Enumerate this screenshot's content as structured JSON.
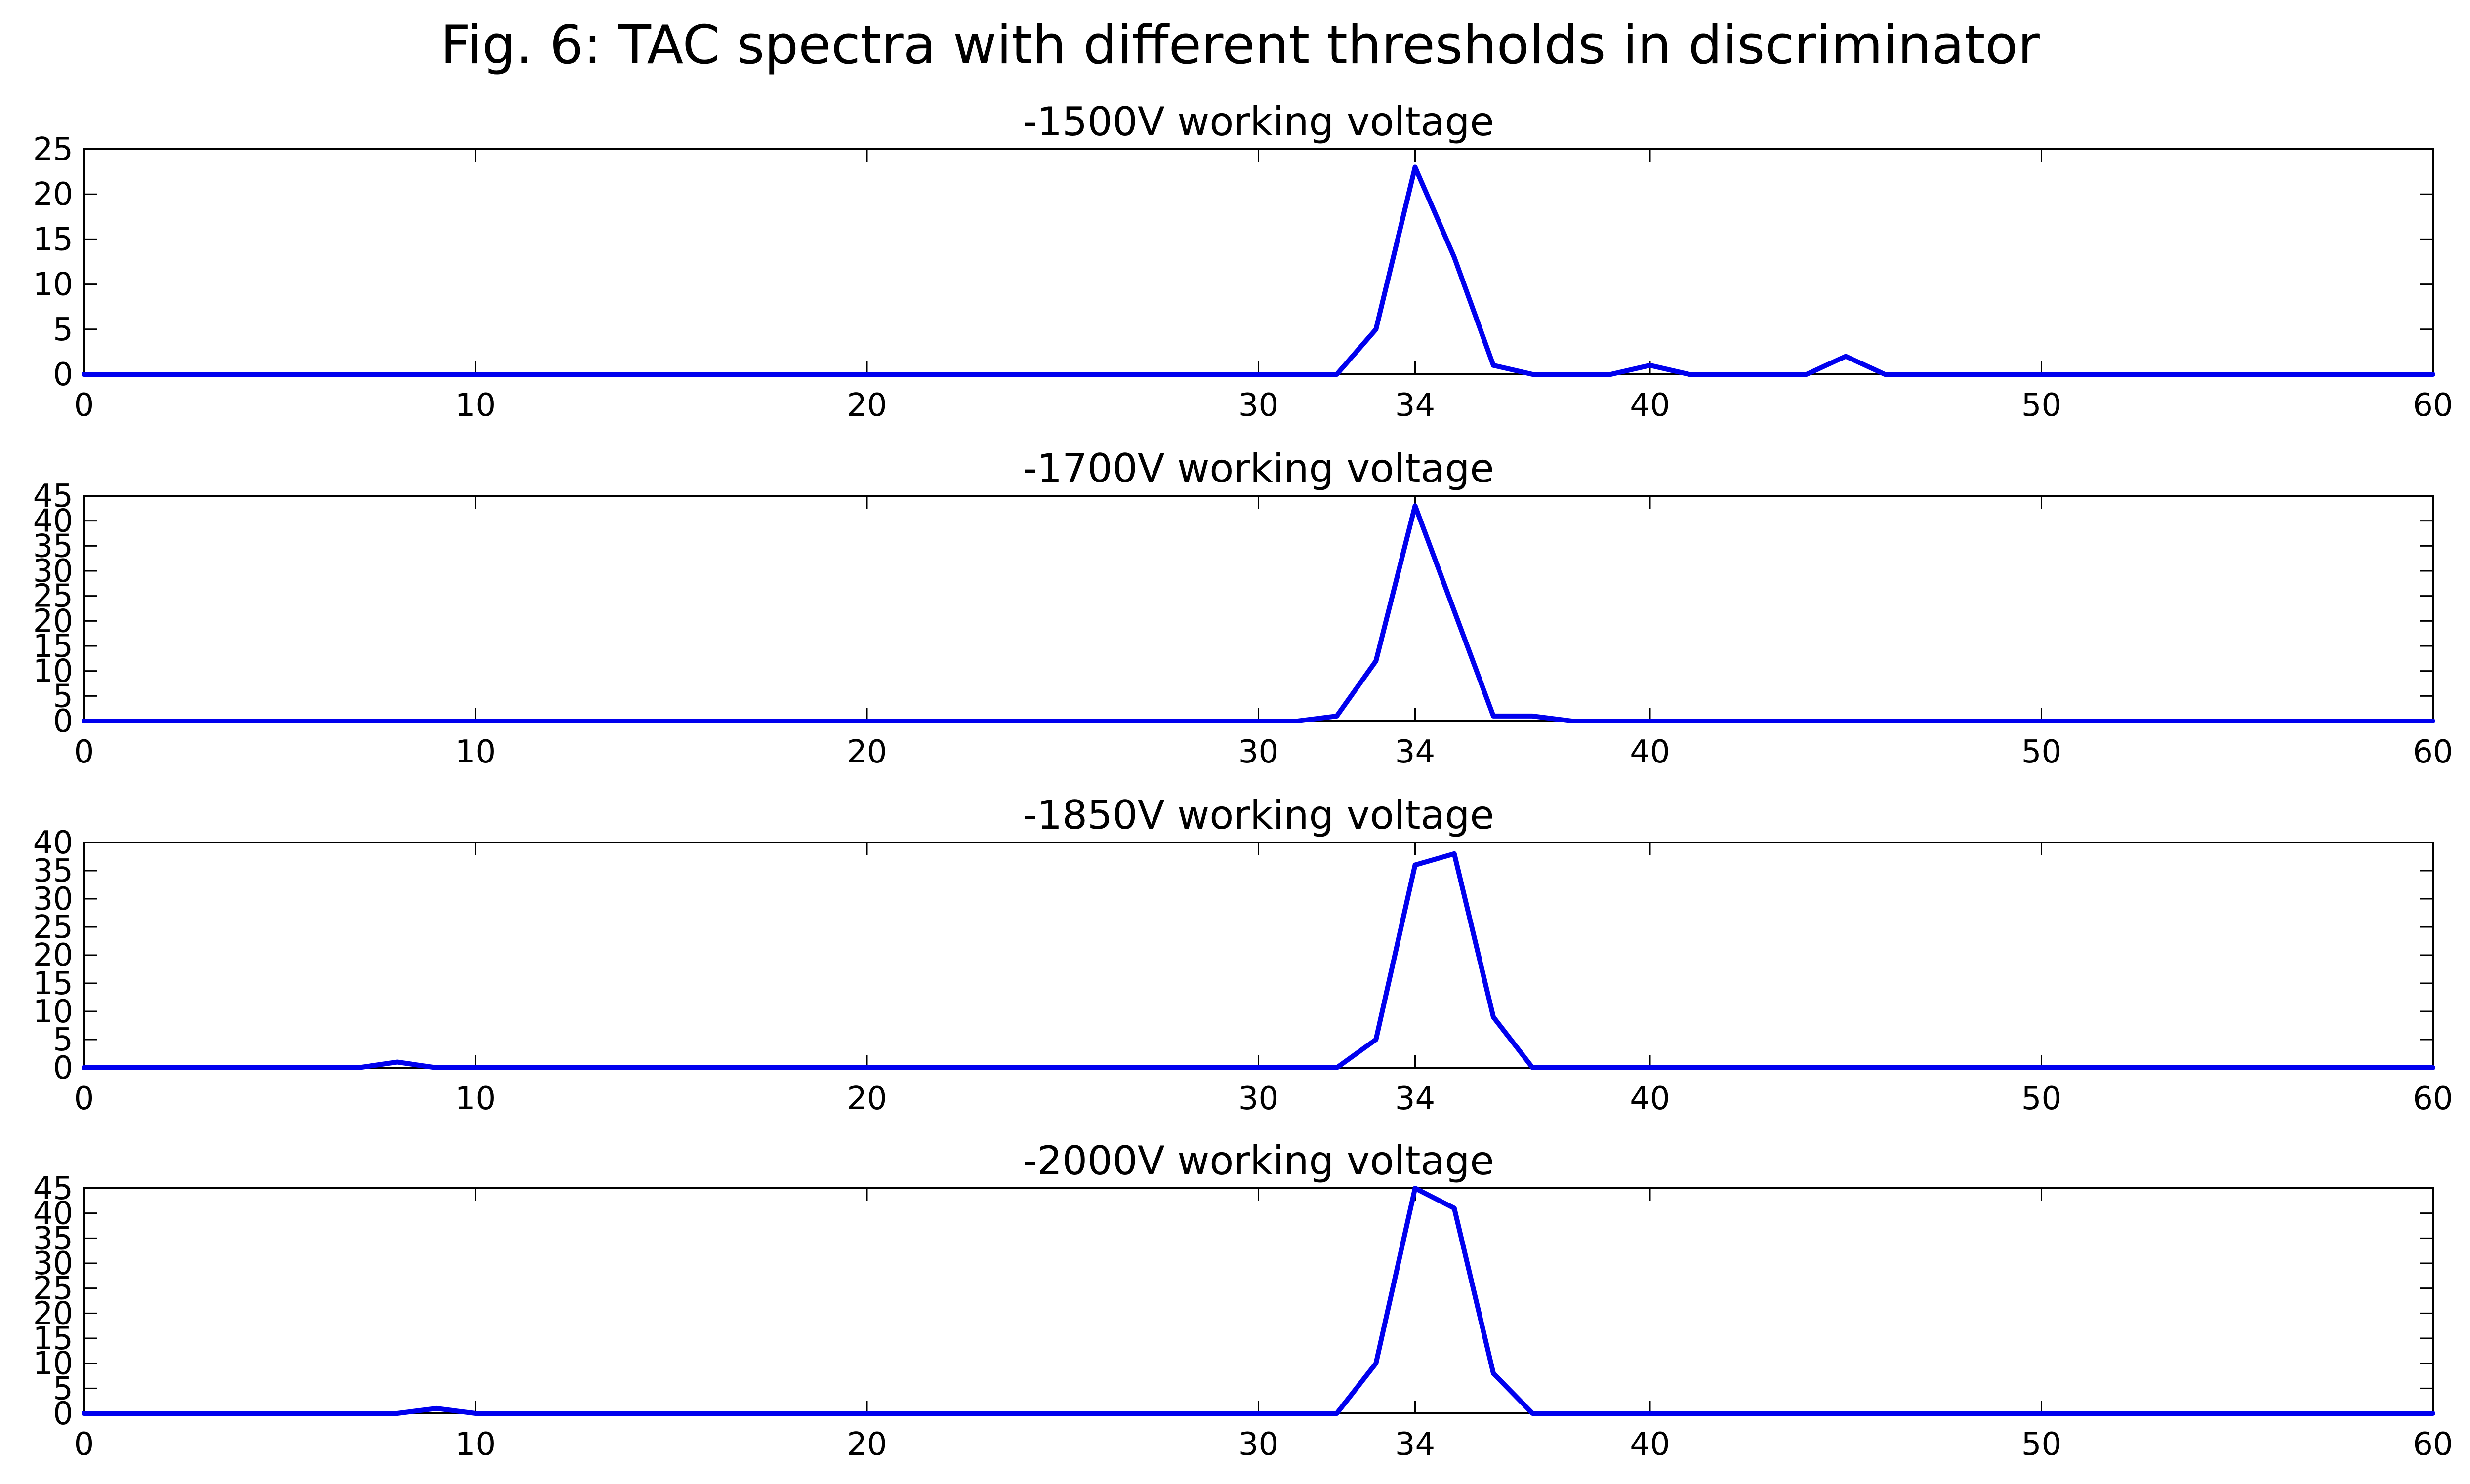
{
  "title": "Fig. 6: TAC spectra with different thresholds in discriminator",
  "colors": {
    "line": "#0000ee",
    "axes": "#000000",
    "background": "#ffffff"
  },
  "chart_data": [
    {
      "type": "line",
      "title": "-1500V working voltage",
      "xlim": [
        0,
        60
      ],
      "ylim": [
        0,
        25
      ],
      "xticks": [
        0,
        10,
        20,
        30,
        34,
        40,
        50,
        60
      ],
      "yticks": [
        0,
        5,
        10,
        15,
        20,
        25
      ],
      "grid": false,
      "x": [
        0,
        32,
        33,
        34,
        35,
        36,
        37,
        38,
        39,
        40,
        41,
        42,
        43,
        44,
        45,
        46,
        60
      ],
      "y": [
        0,
        0,
        5,
        23,
        13,
        1,
        0,
        0,
        0,
        1,
        0,
        0,
        0,
        0,
        2,
        0,
        0
      ]
    },
    {
      "type": "line",
      "title": "-1700V working voltage",
      "xlim": [
        0,
        60
      ],
      "ylim": [
        0,
        45
      ],
      "xticks": [
        0,
        10,
        20,
        30,
        34,
        40,
        50,
        60
      ],
      "yticks": [
        0,
        5,
        10,
        15,
        20,
        25,
        30,
        35,
        40,
        45
      ],
      "grid": false,
      "x": [
        0,
        31,
        32,
        33,
        34,
        35,
        36,
        37,
        38,
        60
      ],
      "y": [
        0,
        0,
        1,
        12,
        43,
        22,
        1,
        1,
        0,
        0
      ]
    },
    {
      "type": "line",
      "title": "-1850V working voltage",
      "xlim": [
        0,
        60
      ],
      "ylim": [
        0,
        40
      ],
      "xticks": [
        0,
        10,
        20,
        30,
        34,
        40,
        50,
        60
      ],
      "yticks": [
        0,
        5,
        10,
        15,
        20,
        25,
        30,
        35,
        40
      ],
      "grid": false,
      "x": [
        0,
        7,
        8,
        9,
        32,
        33,
        34,
        35,
        36,
        37,
        60
      ],
      "y": [
        0,
        0,
        1,
        0,
        0,
        5,
        36,
        38,
        9,
        0,
        0
      ]
    },
    {
      "type": "line",
      "title": "-2000V working voltage",
      "xlim": [
        0,
        60
      ],
      "ylim": [
        0,
        45
      ],
      "xticks": [
        0,
        10,
        20,
        30,
        34,
        40,
        50,
        60
      ],
      "yticks": [
        0,
        5,
        10,
        15,
        20,
        25,
        30,
        35,
        40,
        45
      ],
      "grid": false,
      "x": [
        0,
        8,
        9,
        10,
        32,
        33,
        34,
        35,
        36,
        37,
        60
      ],
      "y": [
        0,
        0,
        1,
        0,
        0,
        10,
        45,
        41,
        8,
        0,
        0
      ]
    }
  ]
}
